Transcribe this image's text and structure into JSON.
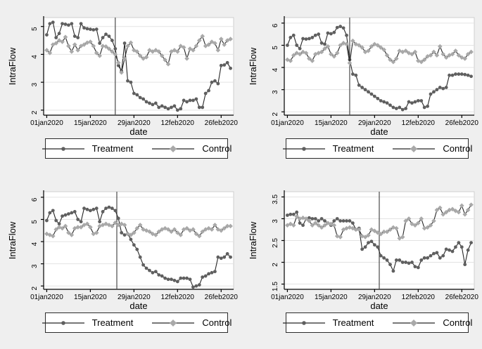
{
  "page": {
    "background": "#efefef"
  },
  "colors": {
    "plot_bg": "#ffffff",
    "grid": "#e3e3e3",
    "plot_border": "#cfcfcf",
    "axis": "#000000",
    "text": "#000000",
    "refline": "#4a4a4a",
    "series_line": "#262626",
    "treatment": "#5f5f5f",
    "control": "#a9a9a9"
  },
  "chart_data": [
    {
      "type": "line",
      "position": "top-left",
      "xlabel": "date",
      "ylabel": "IntraFlow",
      "x_tick_labels": [
        "01jan2020",
        "15jan2020",
        "29jan2020",
        "12feb2020",
        "26feb2020"
      ],
      "x_tick_days": [
        0,
        14,
        28,
        42,
        56
      ],
      "x_range_days": [
        -1,
        60
      ],
      "ylim": [
        1.82,
        5.32
      ],
      "yticks": [
        2,
        3,
        4,
        5
      ],
      "ytick_labels": [
        "2",
        "3",
        "4",
        "5"
      ],
      "refline_day": 22,
      "grid": true,
      "legend_position": "bottom",
      "series": [
        {
          "name": "Treatment",
          "marker": "circle",
          "color": "#5f5f5f",
          "values": [
            4.7,
            5.1,
            5.15,
            4.6,
            4.75,
            5.1,
            5.08,
            5.05,
            5.1,
            4.65,
            4.6,
            5.1,
            4.95,
            4.92,
            4.9,
            4.88,
            4.9,
            4.4,
            4.6,
            4.72,
            4.65,
            4.5,
            4.2,
            3.6,
            3.4,
            4.4,
            3.05,
            3.0,
            2.6,
            2.55,
            2.45,
            2.4,
            2.3,
            2.25,
            2.2,
            2.25,
            2.1,
            2.15,
            2.1,
            2.05,
            2.1,
            2.15,
            2.0,
            2.05,
            2.35,
            2.3,
            2.35,
            2.35,
            2.4,
            2.1,
            2.1,
            2.6,
            2.7,
            3.0,
            3.05,
            2.95,
            3.6,
            3.62,
            3.7,
            3.5
          ]
        },
        {
          "name": "Control",
          "marker": "diamond",
          "color": "#a9a9a9",
          "values": [
            4.15,
            4.05,
            4.35,
            4.4,
            4.5,
            4.45,
            4.62,
            4.3,
            4.1,
            4.35,
            4.15,
            4.3,
            4.35,
            4.42,
            4.45,
            4.3,
            4.05,
            3.95,
            4.3,
            4.28,
            4.2,
            4.1,
            4.0,
            3.7,
            3.35,
            3.85,
            4.3,
            4.42,
            4.15,
            4.1,
            3.95,
            3.85,
            3.9,
            4.15,
            4.1,
            4.15,
            4.1,
            3.95,
            3.8,
            3.65,
            4.1,
            4.15,
            4.1,
            4.3,
            4.25,
            3.85,
            4.2,
            4.15,
            4.3,
            4.5,
            4.65,
            4.3,
            4.35,
            4.45,
            4.4,
            4.15,
            4.55,
            4.35,
            4.5,
            4.55
          ]
        }
      ]
    },
    {
      "type": "line",
      "position": "top-right",
      "xlabel": "date",
      "ylabel": "IntraFlow",
      "x_tick_labels": [
        "01jan2020",
        "15jan2020",
        "29jan2020",
        "12feb2020",
        "26feb2020"
      ],
      "x_tick_days": [
        0,
        14,
        28,
        42,
        56
      ],
      "x_range_days": [
        -1,
        60
      ],
      "ylim": [
        1.85,
        6.25
      ],
      "yticks": [
        2,
        3,
        4,
        5,
        6
      ],
      "ytick_labels": [
        "2",
        "3",
        "4",
        "5",
        "6"
      ],
      "refline_day": 20,
      "grid": true,
      "legend_position": "bottom",
      "series": [
        {
          "name": "Treatment",
          "marker": "circle",
          "color": "#5f5f5f",
          "values": [
            5.0,
            5.35,
            5.45,
            5.0,
            4.85,
            5.3,
            5.28,
            5.3,
            5.35,
            5.45,
            5.5,
            5.1,
            5.05,
            5.55,
            5.52,
            5.58,
            5.8,
            5.85,
            5.78,
            5.45,
            4.35,
            3.7,
            3.65,
            3.2,
            3.1,
            3.0,
            2.9,
            2.8,
            2.7,
            2.6,
            2.5,
            2.45,
            2.4,
            2.3,
            2.2,
            2.15,
            2.2,
            2.1,
            2.15,
            2.45,
            2.4,
            2.45,
            2.5,
            2.5,
            2.2,
            2.25,
            2.8,
            2.9,
            3.0,
            3.1,
            3.05,
            3.1,
            3.65,
            3.65,
            3.7,
            3.7,
            3.7,
            3.68,
            3.65,
            3.6
          ]
        },
        {
          "name": "Control",
          "marker": "diamond",
          "color": "#a9a9a9",
          "values": [
            4.35,
            4.3,
            4.55,
            4.65,
            4.6,
            4.7,
            4.65,
            4.4,
            4.3,
            4.6,
            4.65,
            4.7,
            4.85,
            4.95,
            4.6,
            4.5,
            4.65,
            5.0,
            5.1,
            5.05,
            4.2,
            5.2,
            5.05,
            5.0,
            4.9,
            4.7,
            4.75,
            4.95,
            5.05,
            5.0,
            4.9,
            4.8,
            4.55,
            4.35,
            4.25,
            4.4,
            4.75,
            4.7,
            4.75,
            4.65,
            4.6,
            4.7,
            4.3,
            4.25,
            4.35,
            4.5,
            4.55,
            4.7,
            4.55,
            4.95,
            4.6,
            4.45,
            4.55,
            4.6,
            4.75,
            4.55,
            4.45,
            4.4,
            4.6,
            4.7
          ]
        }
      ]
    },
    {
      "type": "line",
      "position": "bottom-left",
      "xlabel": "date",
      "ylabel": "IntraFlow",
      "x_tick_labels": [
        "01jan2020",
        "15jan2020",
        "29jan2020",
        "12feb2020",
        "26feb2020"
      ],
      "x_tick_days": [
        0,
        14,
        28,
        42,
        56
      ],
      "x_range_days": [
        -1,
        60
      ],
      "ylim": [
        1.85,
        6.25
      ],
      "yticks": [
        2,
        3,
        4,
        5,
        6
      ],
      "ytick_labels": [
        "2",
        "3",
        "4",
        "5",
        "6"
      ],
      "refline_day": 22.5,
      "grid": true,
      "legend_position": "bottom",
      "series": [
        {
          "name": "Treatment",
          "marker": "circle",
          "color": "#5f5f5f",
          "values": [
            4.95,
            5.3,
            5.4,
            4.95,
            4.8,
            5.15,
            5.2,
            5.25,
            5.3,
            5.35,
            5.0,
            4.9,
            5.5,
            5.45,
            5.4,
            5.45,
            5.5,
            4.9,
            5.35,
            5.5,
            5.55,
            5.5,
            5.4,
            5.05,
            4.4,
            4.3,
            4.35,
            4.1,
            3.85,
            3.65,
            3.3,
            2.95,
            2.8,
            2.7,
            2.6,
            2.65,
            2.5,
            2.45,
            2.35,
            2.3,
            2.3,
            2.25,
            2.2,
            2.35,
            2.35,
            2.35,
            2.3,
            1.95,
            2.0,
            2.05,
            2.4,
            2.45,
            2.55,
            2.6,
            2.65,
            3.3,
            3.25,
            3.3,
            3.45,
            3.3
          ]
        },
        {
          "name": "Control",
          "marker": "diamond",
          "color": "#a9a9a9",
          "values": [
            4.35,
            4.3,
            4.25,
            4.55,
            4.65,
            4.6,
            4.7,
            4.4,
            4.3,
            4.6,
            4.65,
            4.65,
            4.75,
            4.8,
            4.65,
            4.35,
            4.4,
            4.7,
            4.75,
            4.8,
            4.75,
            4.7,
            4.85,
            4.75,
            4.8,
            4.75,
            4.35,
            4.3,
            4.4,
            4.6,
            4.75,
            4.55,
            4.5,
            4.45,
            4.35,
            4.3,
            4.45,
            4.55,
            4.6,
            4.55,
            4.45,
            4.55,
            4.4,
            4.3,
            4.55,
            4.6,
            4.5,
            4.55,
            4.35,
            4.25,
            4.45,
            4.55,
            4.6,
            4.55,
            4.75,
            4.55,
            4.5,
            4.6,
            4.7,
            4.7
          ]
        }
      ]
    },
    {
      "type": "line",
      "position": "bottom-right",
      "xlabel": "date",
      "ylabel": "IntraFlow",
      "x_tick_labels": [
        "01jan2020",
        "15jan2020",
        "29jan2020",
        "12feb2020",
        "26feb2020"
      ],
      "x_tick_days": [
        0,
        14,
        28,
        42,
        56
      ],
      "x_range_days": [
        -1,
        60
      ],
      "ylim": [
        1.38,
        3.62
      ],
      "yticks": [
        1.5,
        2,
        2.5,
        3,
        3.5
      ],
      "ytick_labels": [
        "1.5",
        "2",
        "2.5",
        "3",
        "3.5"
      ],
      "refline_day": 29.5,
      "grid": true,
      "legend_position": "bottom",
      "series": [
        {
          "name": "Treatment",
          "marker": "circle",
          "color": "#5f5f5f",
          "values": [
            3.08,
            3.1,
            3.1,
            3.15,
            2.9,
            2.85,
            3.0,
            3.02,
            3.0,
            3.0,
            2.95,
            3.0,
            2.95,
            2.9,
            2.85,
            2.95,
            3.0,
            2.95,
            2.95,
            2.95,
            2.95,
            2.9,
            2.75,
            2.78,
            2.3,
            2.35,
            2.45,
            2.48,
            2.4,
            2.35,
            2.15,
            2.1,
            2.05,
            1.95,
            1.8,
            2.05,
            2.05,
            2.0,
            2.0,
            1.98,
            2.0,
            1.9,
            1.88,
            2.05,
            2.1,
            2.1,
            2.15,
            2.2,
            2.22,
            2.1,
            2.15,
            2.3,
            2.28,
            2.25,
            2.35,
            2.45,
            2.35,
            1.95,
            2.28,
            2.45
          ]
        },
        {
          "name": "Control",
          "marker": "diamond",
          "color": "#a9a9a9",
          "values": [
            2.85,
            2.88,
            2.85,
            3.05,
            3.0,
            3.02,
            3.0,
            2.95,
            2.85,
            2.9,
            2.85,
            2.8,
            2.85,
            2.9,
            2.88,
            2.85,
            2.6,
            2.58,
            2.75,
            2.78,
            2.8,
            2.78,
            2.75,
            2.75,
            2.6,
            2.58,
            2.62,
            2.75,
            2.72,
            2.68,
            2.65,
            2.7,
            2.7,
            2.75,
            2.8,
            2.78,
            2.55,
            2.58,
            2.95,
            3.0,
            2.88,
            2.85,
            2.9,
            3.0,
            2.78,
            2.8,
            2.85,
            2.95,
            3.2,
            3.25,
            3.1,
            3.15,
            3.2,
            3.22,
            3.18,
            3.15,
            3.3,
            3.1,
            3.2,
            3.32
          ]
        }
      ]
    }
  ]
}
